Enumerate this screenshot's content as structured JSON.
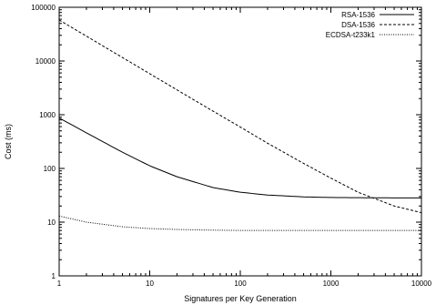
{
  "chart_data": {
    "type": "line",
    "xlabel": "Signatures per Key Generation",
    "ylabel": "Cost (ms)",
    "xscale": "log",
    "yscale": "log",
    "xlim": [
      1,
      10000
    ],
    "ylim": [
      1,
      100000
    ],
    "xticks": [
      "1",
      "10",
      "100",
      "1000",
      "10000"
    ],
    "yticks": [
      "1",
      "10",
      "100",
      "1000",
      "10000",
      "100000"
    ],
    "grid": false,
    "legend_position": "top-right",
    "series": [
      {
        "name": "RSA-1536",
        "style": "solid",
        "x": [
          1,
          2,
          5,
          10,
          20,
          50,
          100,
          200,
          500,
          1000,
          2000,
          5000,
          10000
        ],
        "y": [
          870,
          460,
          200,
          112,
          70,
          44,
          36,
          32,
          29.5,
          28.8,
          28.5,
          28.3,
          28.2
        ]
      },
      {
        "name": "DSA-1536",
        "style": "dashed",
        "x": [
          1,
          2,
          5,
          10,
          20,
          50,
          100,
          200,
          500,
          1000,
          2000,
          5000,
          10000
        ],
        "y": [
          58000,
          29000,
          11600,
          5800,
          2900,
          1165,
          590,
          295,
          124,
          66,
          36,
          20,
          15
        ]
      },
      {
        "name": "ECDSA-t233k1",
        "style": "dotted",
        "x": [
          1,
          2,
          5,
          10,
          20,
          50,
          100,
          200,
          500,
          1000,
          2000,
          5000,
          10000
        ],
        "y": [
          13,
          10,
          8.2,
          7.6,
          7.3,
          7.1,
          7.0,
          7.0,
          7.0,
          7.0,
          7.0,
          7.0,
          7.0
        ]
      }
    ]
  }
}
